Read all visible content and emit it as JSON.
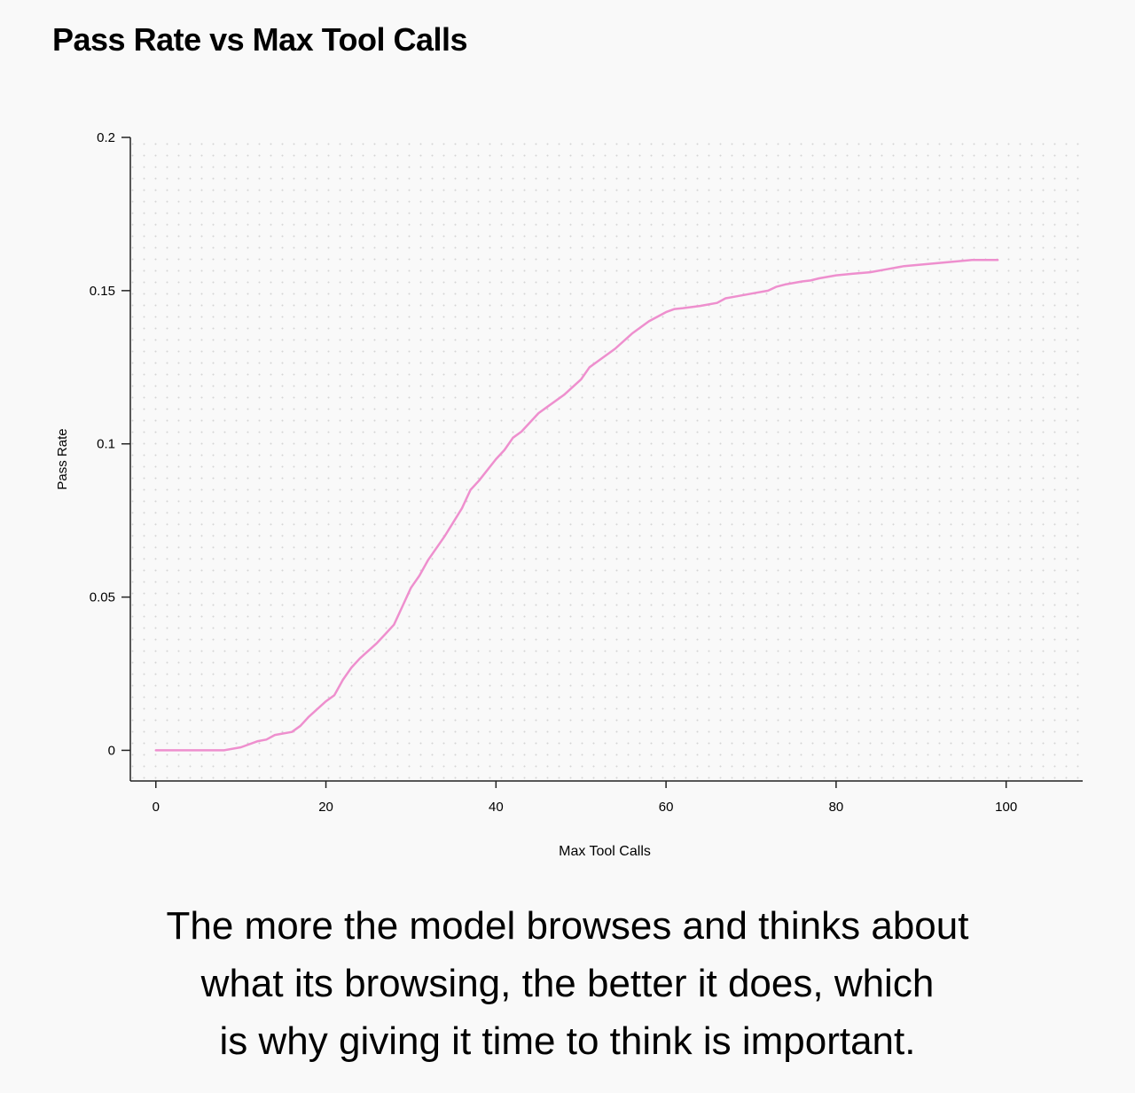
{
  "title": "Pass Rate vs Max Tool Calls",
  "caption_lines": [
    "The more the model browses and thinks about",
    "what its browsing, the better it does, which",
    "is why giving it time to think is important."
  ],
  "colors": {
    "line": "#ee8fce",
    "background": "#f9f9f9",
    "axis": "#222222",
    "grid_dots": "#d4d4d4"
  },
  "chart_data": {
    "type": "line",
    "title": "Pass Rate vs Max Tool Calls",
    "xlabel": "Max Tool Calls",
    "ylabel": "Pass Rate",
    "xlim": [
      -3,
      109
    ],
    "ylim": [
      -0.01,
      0.2
    ],
    "xticks": [
      0,
      20,
      40,
      60,
      80,
      100
    ],
    "xtick_labels": [
      "0",
      "20",
      "40",
      "60",
      "80",
      "100"
    ],
    "yticks": [
      0,
      0.05,
      0.1,
      0.15,
      0.2
    ],
    "ytick_labels": [
      "0",
      "0.05",
      "0.1",
      "0.15",
      "0.2"
    ],
    "grid": "dotted background",
    "legend": "none",
    "series": [
      {
        "x": [
          0,
          2,
          4,
          6,
          8,
          10,
          12,
          13,
          14,
          16,
          17,
          18,
          20,
          21,
          22,
          23,
          24,
          26,
          27,
          28,
          29,
          30,
          31,
          32,
          34,
          36,
          37,
          38,
          40,
          41,
          42,
          43,
          44,
          45,
          46,
          48,
          50,
          51,
          52,
          54,
          56,
          58,
          60,
          61,
          62,
          64,
          66,
          67,
          68,
          70,
          72,
          73,
          74,
          76,
          77,
          78,
          80,
          82,
          84,
          86,
          88,
          90,
          92,
          94,
          96,
          98,
          99
        ],
        "y": [
          0,
          0,
          0,
          0,
          0,
          0.001,
          0.003,
          0.0035,
          0.005,
          0.006,
          0.008,
          0.011,
          0.016,
          0.018,
          0.023,
          0.027,
          0.03,
          0.035,
          0.038,
          0.041,
          0.047,
          0.053,
          0.057,
          0.062,
          0.07,
          0.079,
          0.085,
          0.088,
          0.095,
          0.098,
          0.102,
          0.104,
          0.107,
          0.11,
          0.112,
          0.116,
          0.121,
          0.125,
          0.127,
          0.131,
          0.136,
          0.14,
          0.143,
          0.144,
          0.1443,
          0.145,
          0.146,
          0.1475,
          0.148,
          0.149,
          0.15,
          0.1513,
          0.152,
          0.153,
          0.1533,
          0.154,
          0.155,
          0.1555,
          0.156,
          0.157,
          0.158,
          0.1585,
          0.159,
          0.1595,
          0.16,
          0.16,
          0.16
        ]
      }
    ]
  }
}
